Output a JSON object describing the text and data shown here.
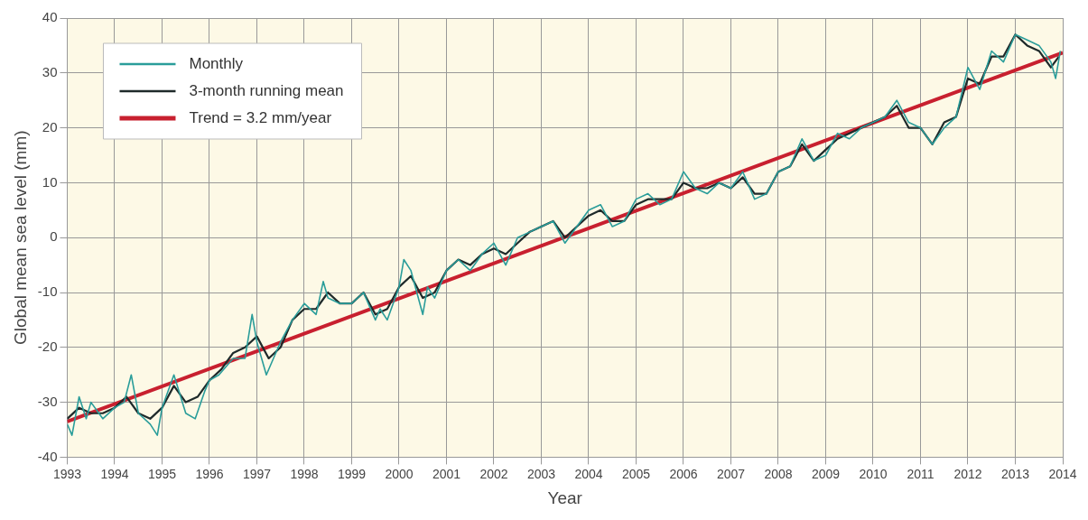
{
  "chart_data": {
    "type": "line",
    "xlabel": "Year",
    "ylabel": "Global mean sea level (mm)",
    "xlim": [
      1993,
      2014
    ],
    "xticks": [
      1993,
      1994,
      1995,
      1996,
      1997,
      1998,
      1999,
      2000,
      2001,
      2002,
      2003,
      2004,
      2005,
      2006,
      2007,
      2008,
      2009,
      2010,
      2011,
      2012,
      2013,
      2014
    ],
    "ylim": [
      -40,
      40
    ],
    "yticks": [
      -40,
      -30,
      -20,
      -10,
      0,
      10,
      20,
      30,
      40
    ],
    "grid": true,
    "legend": "top left",
    "marker": "none",
    "line_style": "solid",
    "series": [
      {
        "name": "Monthly",
        "color": "#2a9d9a",
        "x": [
          1993.0,
          1993.1,
          1993.25,
          1993.4,
          1993.5,
          1993.75,
          1994.0,
          1994.2,
          1994.35,
          1994.5,
          1994.75,
          1994.9,
          1995.0,
          1995.25,
          1995.5,
          1995.7,
          1995.9,
          1996.0,
          1996.2,
          1996.5,
          1996.75,
          1996.9,
          1997.0,
          1997.2,
          1997.5,
          1997.75,
          1998.0,
          1998.25,
          1998.4,
          1998.5,
          1998.75,
          1999.0,
          1999.25,
          1999.5,
          1999.6,
          1999.75,
          2000.0,
          2000.1,
          2000.25,
          2000.5,
          2000.6,
          2000.75,
          2001.0,
          2001.25,
          2001.5,
          2001.75,
          2002.0,
          2002.25,
          2002.5,
          2002.75,
          2003.0,
          2003.25,
          2003.5,
          2003.75,
          2004.0,
          2004.25,
          2004.5,
          2004.75,
          2005.0,
          2005.25,
          2005.5,
          2005.75,
          2006.0,
          2006.25,
          2006.5,
          2006.75,
          2007.0,
          2007.25,
          2007.5,
          2007.75,
          2008.0,
          2008.25,
          2008.5,
          2008.75,
          2009.0,
          2009.25,
          2009.5,
          2009.75,
          2010.0,
          2010.25,
          2010.5,
          2010.75,
          2011.0,
          2011.25,
          2011.5,
          2011.75,
          2012.0,
          2012.25,
          2012.5,
          2012.75,
          2013.0,
          2013.25,
          2013.5,
          2013.75,
          2013.85,
          2013.95
        ],
        "values": [
          -34,
          -36,
          -29,
          -33,
          -30,
          -33,
          -31,
          -30,
          -25,
          -32,
          -34,
          -36,
          -31,
          -25,
          -32,
          -33,
          -28,
          -26,
          -25,
          -22,
          -22,
          -14,
          -19,
          -25,
          -19,
          -15,
          -12,
          -14,
          -8,
          -11,
          -12,
          -12,
          -10,
          -15,
          -13,
          -15,
          -9,
          -4,
          -6,
          -14,
          -9,
          -11,
          -6,
          -4,
          -6,
          -3,
          -1,
          -5,
          0,
          1,
          2,
          3,
          -1,
          2,
          5,
          6,
          2,
          3,
          7,
          8,
          6,
          7,
          12,
          9,
          8,
          10,
          9,
          12,
          7,
          8,
          12,
          13,
          18,
          14,
          15,
          19,
          18,
          20,
          21,
          22,
          25,
          21,
          20,
          17,
          20,
          22,
          31,
          27,
          34,
          32,
          37,
          36,
          35,
          32,
          29,
          34
        ]
      },
      {
        "name": "3-month running mean",
        "color": "#1e2a2a",
        "x": [
          1993.0,
          1993.25,
          1993.5,
          1993.75,
          1994.0,
          1994.25,
          1994.5,
          1994.75,
          1995.0,
          1995.25,
          1995.5,
          1995.75,
          1996.0,
          1996.25,
          1996.5,
          1996.75,
          1997.0,
          1997.25,
          1997.5,
          1997.75,
          1998.0,
          1998.25,
          1998.5,
          1998.75,
          1999.0,
          1999.25,
          1999.5,
          1999.75,
          2000.0,
          2000.25,
          2000.5,
          2000.75,
          2001.0,
          2001.25,
          2001.5,
          2001.75,
          2002.0,
          2002.25,
          2002.5,
          2002.75,
          2003.0,
          2003.25,
          2003.5,
          2003.75,
          2004.0,
          2004.25,
          2004.5,
          2004.75,
          2005.0,
          2005.25,
          2005.5,
          2005.75,
          2006.0,
          2006.25,
          2006.5,
          2006.75,
          2007.0,
          2007.25,
          2007.5,
          2007.75,
          2008.0,
          2008.25,
          2008.5,
          2008.75,
          2009.0,
          2009.25,
          2009.5,
          2009.75,
          2010.0,
          2010.25,
          2010.5,
          2010.75,
          2011.0,
          2011.25,
          2011.5,
          2011.75,
          2012.0,
          2012.25,
          2012.5,
          2012.75,
          2013.0,
          2013.25,
          2013.5,
          2013.75,
          2013.92
        ],
        "values": [
          -33,
          -31,
          -32,
          -32,
          -31,
          -29,
          -32,
          -33,
          -31,
          -27,
          -30,
          -29,
          -26,
          -24,
          -21,
          -20,
          -18,
          -22,
          -20,
          -15,
          -13,
          -13,
          -10,
          -12,
          -12,
          -10,
          -14,
          -13,
          -9,
          -7,
          -11,
          -10,
          -6,
          -4,
          -5,
          -3,
          -2,
          -3,
          -1,
          1,
          2,
          3,
          0,
          2,
          4,
          5,
          3,
          3,
          6,
          7,
          7,
          7,
          10,
          9,
          9,
          10,
          9,
          11,
          8,
          8,
          12,
          13,
          17,
          14,
          16,
          18,
          19,
          20,
          21,
          22,
          24,
          20,
          20,
          17,
          21,
          22,
          29,
          28,
          33,
          33,
          37,
          35,
          34,
          31,
          33
        ]
      },
      {
        "name": "Trend = 3.2 mm/year",
        "color": "#c8202f",
        "x": [
          1993,
          2014
        ],
        "values": [
          -33.5,
          33.7
        ]
      }
    ]
  }
}
